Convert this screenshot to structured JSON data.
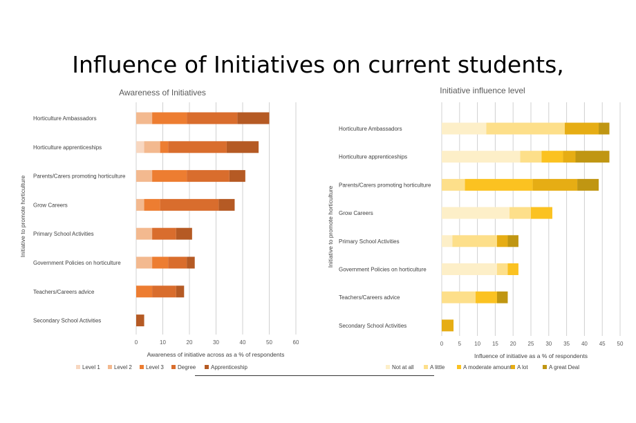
{
  "title": "Influence of Initiatives on current students,",
  "chart_data": [
    {
      "type": "bar",
      "orientation": "horizontal",
      "stacked": true,
      "title": "Awareness of Initiatives",
      "xlabel": "Awareness of initiative across as a % of respondents",
      "ylabel": "Initiative to promote horticulture",
      "xlim": [
        0,
        60
      ],
      "xticks": [
        0,
        10,
        20,
        30,
        40,
        50,
        60
      ],
      "grid": true,
      "legend_position": "bottom",
      "categories": [
        "Horticulture Ambassadors",
        "Horticulture apprenticeships",
        "Parents/Carers promoting horticulture",
        "Grow Careers",
        "Primary School Activities",
        "Government Policies on horticulture",
        "Teachers/Careers advice",
        "Secondary School Activities"
      ],
      "series": [
        {
          "name": "Level 1",
          "color": "#f8d7c0",
          "values": [
            0,
            3,
            0,
            0,
            0,
            0,
            0,
            0
          ]
        },
        {
          "name": "Level 2",
          "color": "#f3b98f",
          "values": [
            6,
            6,
            6,
            3,
            6,
            6,
            0,
            0
          ]
        },
        {
          "name": "Level 3",
          "color": "#ed7d31",
          "values": [
            13,
            3,
            13,
            6,
            0,
            6,
            6,
            0
          ]
        },
        {
          "name": "Degree",
          "color": "#d96d2d",
          "values": [
            19,
            22,
            16,
            22,
            9,
            7,
            9,
            0
          ]
        },
        {
          "name": "Apprenticeship",
          "color": "#b55a24",
          "values": [
            12,
            12,
            6,
            6,
            6,
            3,
            3,
            3
          ]
        }
      ]
    },
    {
      "type": "bar",
      "orientation": "horizontal",
      "stacked": true,
      "title": "Initiative influence level",
      "xlabel": "Influence of initiative as a % of respondents",
      "ylabel": "Initiative to promote horticulture",
      "xlim": [
        0,
        50
      ],
      "xticks": [
        0,
        5,
        10,
        15,
        20,
        25,
        30,
        35,
        40,
        45,
        50
      ],
      "grid": true,
      "legend_position": "bottom",
      "categories": [
        "Horticulture Ambassadors",
        "Horticulture apprenticeships",
        "Parents/Carers promoting horticulture",
        "Grow Careers",
        "Primary School Activities",
        "Government Policies on horticulture",
        "Teachers/Careers advice",
        "Secondary School Activities"
      ],
      "series": [
        {
          "name": "Not at all",
          "color": "#fdefc8",
          "values": [
            12.5,
            22,
            0,
            19,
            3,
            15.5,
            0,
            0
          ]
        },
        {
          "name": "A little",
          "color": "#fddf8a",
          "values": [
            22,
            6,
            6.5,
            6,
            12.5,
            3,
            9.5,
            0
          ]
        },
        {
          "name": "A moderate amount",
          "color": "#fbc221",
          "values": [
            0,
            6,
            19,
            6,
            0,
            3,
            6,
            0
          ]
        },
        {
          "name": "A lot",
          "color": "#e6ad14",
          "values": [
            9.5,
            3.5,
            12.5,
            0,
            3,
            0,
            0,
            3.3
          ]
        },
        {
          "name": "A great Deal",
          "color": "#c09612",
          "values": [
            3,
            9.5,
            6,
            0,
            3,
            0,
            3,
            0
          ]
        }
      ]
    }
  ]
}
